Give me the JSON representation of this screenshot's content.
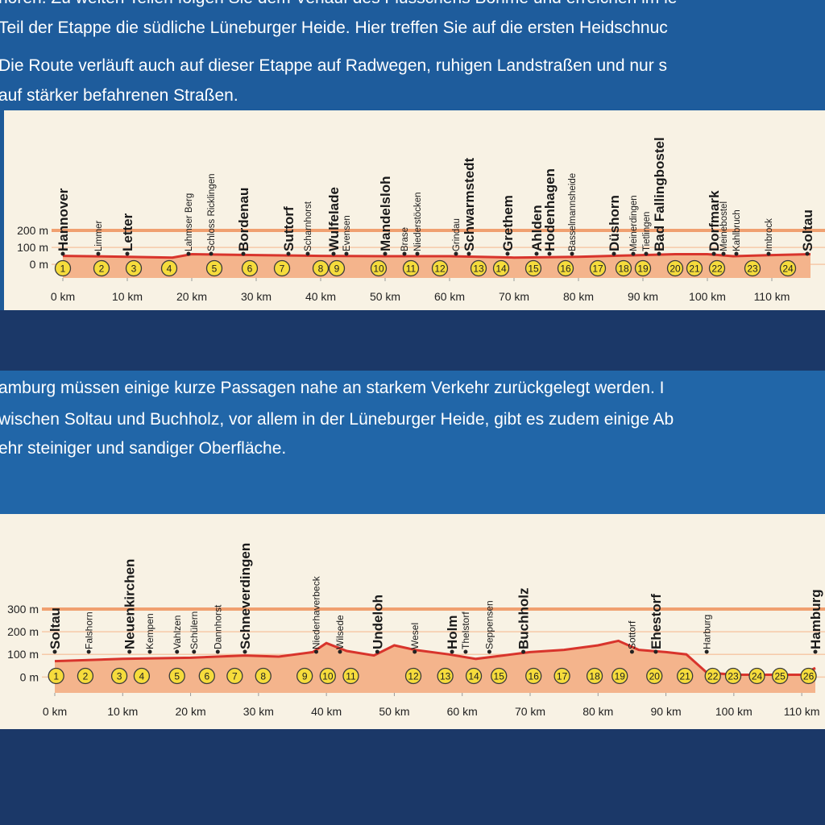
{
  "text": {
    "block1": [
      "hören. Zu weiten Teilen folgen Sie dem Verlauf des Flüsschens Böhme und erreichen im le",
      "Teil der Etappe die südliche Lüneburger Heide. Hier treffen Sie auf die ersten Heidschnuc",
      "Die Route verläuft auch auf dieser Etappe auf Radwegen, ruhigen Landstraßen und nur s",
      "auf stärker befahrenen Straßen."
    ],
    "block2": [
      "amburg müssen einige kurze Passagen nahe an starkem Verkehr zurückgelegt werden. I",
      "wischen Soltau und Buchholz, vor allem in der Lüneburger Heide, gibt es zudem einige Ab",
      "ehr steiniger und sandiger Oberfläche."
    ]
  },
  "chart_data": [
    {
      "type": "area",
      "xlim": [
        0,
        118
      ],
      "ylim": [
        -80,
        200
      ],
      "xticks": [
        {
          "value": 0,
          "label": "0 km"
        },
        {
          "value": 10,
          "label": "10 km"
        },
        {
          "value": 20,
          "label": "20 km"
        },
        {
          "value": 30,
          "label": "30 km"
        },
        {
          "value": 40,
          "label": "40 km"
        },
        {
          "value": 50,
          "label": "50 km"
        },
        {
          "value": 60,
          "label": "60 km"
        },
        {
          "value": 70,
          "label": "70 km"
        },
        {
          "value": 80,
          "label": "80 km"
        },
        {
          "value": 90,
          "label": "90 km"
        },
        {
          "value": 100,
          "label": "100 km"
        },
        {
          "value": 110,
          "label": "110 km"
        }
      ],
      "yticks": [
        {
          "value": 0,
          "label": "0 m"
        },
        {
          "value": 100,
          "label": "100 m"
        },
        {
          "value": 200,
          "label": "200 m"
        }
      ],
      "color": "#d8342c",
      "fill": "#f4b48c",
      "x": [
        0,
        10,
        17,
        20,
        30,
        40,
        50,
        60,
        70,
        80,
        90,
        95,
        100,
        104,
        110,
        116
      ],
      "values": [
        50,
        45,
        40,
        60,
        55,
        50,
        48,
        48,
        40,
        45,
        55,
        60,
        60,
        48,
        55,
        60
      ],
      "places": [
        {
          "name": "Hannover",
          "km": 0,
          "major": true
        },
        {
          "name": "Limmer",
          "km": 5.5,
          "major": false
        },
        {
          "name": "Letter",
          "km": 10,
          "major": true
        },
        {
          "name": "Lahmser Berg",
          "km": 19.5,
          "major": false
        },
        {
          "name": "Schloss Ricklingen",
          "km": 23,
          "major": false
        },
        {
          "name": "Bordenau",
          "km": 28,
          "major": true
        },
        {
          "name": "Suttorf",
          "km": 35,
          "major": true
        },
        {
          "name": "Scharnhorst",
          "km": 38,
          "major": false
        },
        {
          "name": "Wulfelade",
          "km": 42,
          "major": true
        },
        {
          "name": "Evensen",
          "km": 44,
          "major": false
        },
        {
          "name": "Mandelsloh",
          "km": 50,
          "major": true
        },
        {
          "name": "Brase",
          "km": 53,
          "major": false
        },
        {
          "name": "Niederstöcken",
          "km": 55,
          "major": false
        },
        {
          "name": "Grindau",
          "km": 61,
          "major": false
        },
        {
          "name": "Schwarmstedt",
          "km": 63,
          "major": true
        },
        {
          "name": "Grethem",
          "km": 69,
          "major": true
        },
        {
          "name": "Ahlden",
          "km": 73.5,
          "major": true
        },
        {
          "name": "Hodenhagen",
          "km": 75.5,
          "major": true
        },
        {
          "name": "Basselmannsheide",
          "km": 79,
          "major": false
        },
        {
          "name": "Düshorn",
          "km": 85.5,
          "major": true
        },
        {
          "name": "Meinerdingen",
          "km": 88.5,
          "major": false
        },
        {
          "name": "Tietlingen",
          "km": 90.5,
          "major": false
        },
        {
          "name": "Bad Fallingbostel",
          "km": 92.5,
          "major": true
        },
        {
          "name": "Dorfmark",
          "km": 101,
          "major": true
        },
        {
          "name": "Meinebostel",
          "km": 102.5,
          "major": false
        },
        {
          "name": "Kahlbruch",
          "km": 104.5,
          "major": false
        },
        {
          "name": "Imbrock",
          "km": 109.5,
          "major": false
        },
        {
          "name": "Soltau",
          "km": 115.5,
          "major": true
        }
      ],
      "waypoints": [
        {
          "number": 1,
          "km": 0
        },
        {
          "number": 2,
          "km": 6
        },
        {
          "number": 3,
          "km": 11
        },
        {
          "number": 4,
          "km": 16.5
        },
        {
          "number": 5,
          "km": 23.5
        },
        {
          "number": 6,
          "km": 29
        },
        {
          "number": 7,
          "km": 34
        },
        {
          "number": 8,
          "km": 40
        },
        {
          "number": 9,
          "km": 42.5
        },
        {
          "number": 10,
          "km": 49
        },
        {
          "number": 11,
          "km": 54
        },
        {
          "number": 12,
          "km": 58.5
        },
        {
          "number": 13,
          "km": 64.5
        },
        {
          "number": 14,
          "km": 68
        },
        {
          "number": 15,
          "km": 73
        },
        {
          "number": 16,
          "km": 78
        },
        {
          "number": 17,
          "km": 83
        },
        {
          "number": 18,
          "km": 87
        },
        {
          "number": 19,
          "km": 90
        },
        {
          "number": 20,
          "km": 95
        },
        {
          "number": 21,
          "km": 98
        },
        {
          "number": 22,
          "km": 101.5
        },
        {
          "number": 23,
          "km": 107
        },
        {
          "number": 24,
          "km": 112.5
        }
      ]
    },
    {
      "type": "area",
      "xlim": [
        0,
        112
      ],
      "ylim": [
        -70,
        300
      ],
      "xticks": [
        {
          "value": 0,
          "label": "0 km"
        },
        {
          "value": 10,
          "label": "10 km"
        },
        {
          "value": 20,
          "label": "20 km"
        },
        {
          "value": 30,
          "label": "30 km"
        },
        {
          "value": 40,
          "label": "40 km"
        },
        {
          "value": 50,
          "label": "50 km"
        },
        {
          "value": 60,
          "label": "60 km"
        },
        {
          "value": 70,
          "label": "70 km"
        },
        {
          "value": 80,
          "label": "80 km"
        },
        {
          "value": 90,
          "label": "90 km"
        },
        {
          "value": 100,
          "label": "100 km"
        },
        {
          "value": 110,
          "label": "110 km"
        }
      ],
      "yticks": [
        {
          "value": 0,
          "label": "0 m"
        },
        {
          "value": 100,
          "label": "100 m"
        },
        {
          "value": 200,
          "label": "200 m"
        },
        {
          "value": 300,
          "label": "300 m"
        }
      ],
      "color": "#d8342c",
      "fill": "#f4b48c",
      "x": [
        0,
        10,
        20,
        28,
        33,
        38,
        40,
        43,
        47,
        50,
        53,
        58,
        62,
        66,
        70,
        75,
        80,
        83,
        86,
        90,
        93,
        96,
        100,
        110,
        112
      ],
      "values": [
        70,
        80,
        85,
        95,
        90,
        110,
        150,
        115,
        95,
        140,
        120,
        100,
        80,
        95,
        110,
        120,
        140,
        160,
        120,
        110,
        100,
        20,
        10,
        10,
        40
      ],
      "places": [
        {
          "name": "Soltau",
          "km": 0,
          "major": true
        },
        {
          "name": "Falshorn",
          "km": 5,
          "major": false
        },
        {
          "name": "Neuenkirchen",
          "km": 11,
          "major": true
        },
        {
          "name": "Kempen",
          "km": 14,
          "major": false
        },
        {
          "name": "Vahlzen",
          "km": 18,
          "major": false
        },
        {
          "name": "Schülern",
          "km": 20.5,
          "major": false
        },
        {
          "name": "Dannhorst",
          "km": 24,
          "major": false
        },
        {
          "name": "Schneverdingen",
          "km": 28,
          "major": true
        },
        {
          "name": "Niederhaverbeck",
          "km": 38.5,
          "major": false
        },
        {
          "name": "Wilsede",
          "km": 42,
          "major": false
        },
        {
          "name": "Undeloh",
          "km": 47.5,
          "major": true
        },
        {
          "name": "Wesel",
          "km": 53,
          "major": false
        },
        {
          "name": "Holm",
          "km": 58.5,
          "major": true
        },
        {
          "name": "Thelstorf",
          "km": 60.5,
          "major": false
        },
        {
          "name": "Seppensen",
          "km": 64,
          "major": false
        },
        {
          "name": "Buchholz",
          "km": 69,
          "major": true
        },
        {
          "name": "Sottorf",
          "km": 85,
          "major": false
        },
        {
          "name": "Ehestorf",
          "km": 88.5,
          "major": true
        },
        {
          "name": "Harburg",
          "km": 96,
          "major": false
        },
        {
          "name": "Hamburg",
          "km": 112,
          "major": true
        }
      ],
      "waypoints": [
        {
          "number": 1,
          "km": 0.2
        },
        {
          "number": 2,
          "km": 4.5
        },
        {
          "number": 3,
          "km": 9.5
        },
        {
          "number": 4,
          "km": 12.8
        },
        {
          "number": 5,
          "km": 18
        },
        {
          "number": 6,
          "km": 22.4
        },
        {
          "number": 7,
          "km": 26.5
        },
        {
          "number": 8,
          "km": 30.7
        },
        {
          "number": 9,
          "km": 36.8
        },
        {
          "number": 10,
          "km": 40.2
        },
        {
          "number": 11,
          "km": 43.6
        },
        {
          "number": 12,
          "km": 52.8
        },
        {
          "number": 13,
          "km": 57.5
        },
        {
          "number": 14,
          "km": 61.7
        },
        {
          "number": 15,
          "km": 65.4
        },
        {
          "number": 16,
          "km": 70.5
        },
        {
          "number": 17,
          "km": 74.7
        },
        {
          "number": 18,
          "km": 79.5
        },
        {
          "number": 19,
          "km": 83.2
        },
        {
          "number": 20,
          "km": 88.3
        },
        {
          "number": 21,
          "km": 92.8
        },
        {
          "number": 22,
          "km": 96.9
        },
        {
          "number": 23,
          "km": 99.9
        },
        {
          "number": 24,
          "km": 103.4
        },
        {
          "number": 25,
          "km": 106.8
        },
        {
          "number": 26,
          "km": 111
        }
      ]
    }
  ]
}
